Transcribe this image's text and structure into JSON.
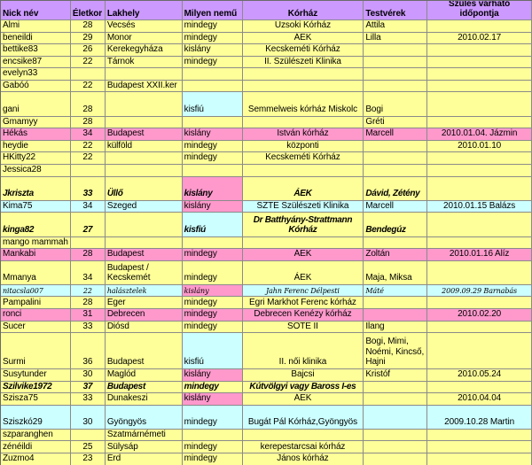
{
  "colors": {
    "header_bg": "#CC99FF",
    "row_yellow": "#FFFF99",
    "row_pink": "#FF99CC",
    "row_cyan": "#CCFFFF",
    "grid": "#8A8A8A"
  },
  "table": {
    "columns": [
      {
        "key": "nick",
        "label": "Nick név"
      },
      {
        "key": "age",
        "label": "Életkor"
      },
      {
        "key": "place",
        "label": "Lakhely"
      },
      {
        "key": "gender",
        "label": "Milyen nemű"
      },
      {
        "key": "hospital",
        "label": "Kórház"
      },
      {
        "key": "siblings",
        "label": "Testvérek"
      },
      {
        "key": "due",
        "label": "Szülés várható időpontja"
      }
    ],
    "rows": [
      {
        "nick": "Almi",
        "age": "28",
        "place": "Vecsés",
        "gender": "mindegy",
        "hospital": "Uzsoki Kórház",
        "siblings": "Attila",
        "due": ""
      },
      {
        "nick": "beneildi",
        "age": "29",
        "place": "Monor",
        "gender": "mindegy",
        "hospital": "ÁEK",
        "siblings": "Lilla",
        "due": "2010.02.17"
      },
      {
        "nick": "bettike83",
        "age": "26",
        "place": "Kerekegyháza",
        "gender": "kislány",
        "hospital": "Kecskeméti Kórház",
        "siblings": "",
        "due": ""
      },
      {
        "nick": "encsike87",
        "age": "22",
        "place": "Tárnok",
        "gender": "mindegy",
        "hospital": "II. Szülészeti Klinika",
        "siblings": "",
        "due": ""
      },
      {
        "nick": "evelyn33",
        "age": "",
        "place": "",
        "gender": "",
        "hospital": "",
        "siblings": "",
        "due": ""
      },
      {
        "nick": "Gabóó",
        "age": "22",
        "place": "Budapest XXII.ker",
        "gender": "",
        "hospital": "",
        "siblings": "",
        "due": ""
      },
      {
        "nick": "gani",
        "age": "28",
        "place": "",
        "gender": "kisfiú",
        "hospital": "Semmelweis kórház Miskolc",
        "siblings": "Bogi",
        "due": "",
        "genderBg": "cyan",
        "tall": 2
      },
      {
        "nick": "Gmamyy",
        "age": "28",
        "place": "",
        "gender": "",
        "hospital": "",
        "siblings": "Gréti",
        "due": ""
      },
      {
        "nick": "Hékás",
        "age": "34",
        "place": "Budapest",
        "gender": "kislány",
        "hospital": "István kórház",
        "siblings": "Marcell",
        "due": "2010.01.04. Jázmin",
        "bg": "pink"
      },
      {
        "nick": "heydie",
        "age": "22",
        "place": "külföld",
        "gender": "mindegy",
        "hospital": "központi",
        "siblings": "",
        "due": "2010.01.10"
      },
      {
        "nick": "HKitty22",
        "age": "22",
        "place": "",
        "gender": "mindegy",
        "hospital": "Kecskeméti Kórház",
        "siblings": "",
        "due": ""
      },
      {
        "nick": "Jessica28",
        "age": "",
        "place": "",
        "gender": "",
        "hospital": "",
        "siblings": "",
        "due": ""
      },
      {
        "nick": "Jkriszta",
        "age": "33",
        "place": "Üllő",
        "gender": "kislány",
        "hospital": "ÁEK",
        "siblings": "Dávid, Zétény",
        "due": "",
        "genderBg": "pink",
        "font": "bold-italic",
        "tall": 2
      },
      {
        "nick": "Kima75",
        "age": "34",
        "place": "Szeged",
        "gender": "kislány",
        "hospital": "SZTE Szülészeti Klinika",
        "siblings": "Marcell",
        "due": "2010.01.15 Balázs",
        "bg": "cyan",
        "genderBg": "pink"
      },
      {
        "nick": "kinga82",
        "age": "27",
        "place": "",
        "gender": "kisfiú",
        "hospital": "Dr Batthyány-Strattmann Kórház",
        "siblings": "Bendegúz",
        "due": "",
        "genderBg": "cyan",
        "font": "bold-italic",
        "tall": 2
      },
      {
        "nick": "mango mammah",
        "age": "",
        "place": "",
        "gender": "",
        "hospital": "",
        "siblings": "",
        "due": ""
      },
      {
        "nick": "Mankabi",
        "age": "28",
        "place": "Budapest",
        "gender": "mindegy",
        "hospital": "ÁEK",
        "siblings": "Zoltán",
        "due": "2010.01.16 Alíz",
        "bg": "pink"
      },
      {
        "nick": "Mmanya",
        "age": "34",
        "place": "Budapest / Kecskemét",
        "gender": "mindegy",
        "hospital": "ÁEK",
        "siblings": "Maja, Miksa",
        "due": "",
        "tall": 2
      },
      {
        "nick": "nitacsla007",
        "age": "22",
        "place": "halásztelek",
        "gender": "kislány",
        "hospital": "Jahn Ferenc Délpesti",
        "siblings": "Máté",
        "due": "2009.09.29 Barnabás",
        "bg": "cyan",
        "genderBg": "pink",
        "font": "script"
      },
      {
        "nick": "Pampalini",
        "age": "28",
        "place": "Eger",
        "gender": "mindegy",
        "hospital": "Egri Markhot Ferenc kórház",
        "siblings": "",
        "due": ""
      },
      {
        "nick": "ronci",
        "age": "31",
        "place": "Debrecen",
        "gender": "mindegy",
        "hospital": "Debrecen Kenézy kórház",
        "siblings": "",
        "due": "2010.02.20",
        "bg": "pink"
      },
      {
        "nick": "Sucer",
        "age": "33",
        "place": "Diósd",
        "gender": "mindegy",
        "hospital": "SOTE II",
        "siblings": "Ilang",
        "due": ""
      },
      {
        "nick": "Surmi",
        "age": "36",
        "place": "Budapest",
        "gender": "kisfiú",
        "hospital": "II. női klinika",
        "siblings": "Bogi, Mimi, Noémi, Kincső, Hajni",
        "due": "",
        "genderBg": "cyan",
        "tall": 3
      },
      {
        "nick": "Susytunder",
        "age": "30",
        "place": "Maglód",
        "gender": "kislány",
        "hospital": "Bajcsi",
        "siblings": "Kristóf",
        "due": "2010.05.24",
        "genderBg": "pink"
      },
      {
        "nick": "Szilvike1972",
        "age": "37",
        "place": "Budapest",
        "gender": "mindegy",
        "hospital": "Kútvölgyi vagy Baross I-es",
        "siblings": "",
        "due": "",
        "font": "bold-italic"
      },
      {
        "nick": "Szisza75",
        "age": "33",
        "place": "Dunakeszi",
        "gender": "kislány",
        "hospital": "ÁEK",
        "siblings": "",
        "due": "2010.04.04",
        "genderBg": "pink"
      },
      {
        "nick": "Sziszkó29",
        "age": "30",
        "place": "Gyöngyös",
        "gender": "mindegy",
        "hospital": "Bugát Pál Kórház,Gyöngyös",
        "siblings": "",
        "due": "2009.10.28 Martin",
        "bg": "cyan",
        "tall": 2
      },
      {
        "nick": "szparanghen",
        "age": "",
        "place": "Szatmárnémeti",
        "gender": "",
        "hospital": "",
        "siblings": "",
        "due": ""
      },
      {
        "nick": "zénéildi",
        "age": "25",
        "place": "Sülysáp",
        "gender": "mindegy",
        "hospital": "kerepestarcsai kórház",
        "siblings": "",
        "due": ""
      },
      {
        "nick": "Zuzmo4",
        "age": "23",
        "place": "Érd",
        "gender": "mindegy",
        "hospital": "János kórház",
        "siblings": "",
        "due": ""
      }
    ]
  }
}
